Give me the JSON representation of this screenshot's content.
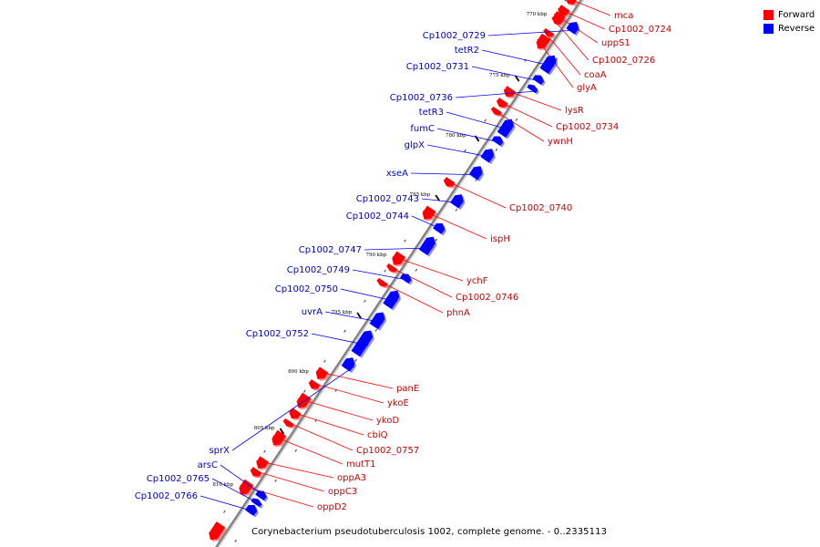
{
  "legend": {
    "items": [
      {
        "label": "Forward",
        "color": "#ff0000"
      },
      {
        "label": "Reverse",
        "color": "#0000ff"
      }
    ]
  },
  "caption": "Corynebacterium pseudotuberculosis 1002, complete genome. - 0..2335113",
  "colors": {
    "forward": "#ff0000",
    "reverse": "#0000ff",
    "backbone": "#7f7f7f"
  },
  "chart_data": {
    "type": "genome-map",
    "scale_labels": [
      "770 kbp",
      "775 kbp",
      "780 kbp",
      "785 kbp",
      "790 kbp",
      "795 kbp",
      "800 kbp",
      "805 kbp",
      "810 kbp"
    ],
    "forward_genes": [
      "mca",
      "Cp1002_0724",
      "uppS1",
      "Cp1002_0726",
      "coaA",
      "glyA",
      "lysR",
      "Cp1002_0734",
      "ywnH",
      "Cp1002_0740",
      "ispH",
      "ychF",
      "Cp1002_0746",
      "phnA",
      "panE",
      "ykoE",
      "ykoD",
      "cbiQ",
      "Cp1002_0757",
      "mutT1",
      "oppA3",
      "oppC3",
      "oppD2"
    ],
    "reverse_genes": [
      "Cp1002_0729",
      "tetR2",
      "Cp1002_0731",
      "Cp1002_0736",
      "tetR3",
      "fumC",
      "glpX",
      "xseA",
      "Cp1002_0743",
      "Cp1002_0744",
      "Cp1002_0747",
      "Cp1002_0749",
      "Cp1002_0750",
      "uvrA",
      "Cp1002_0752",
      "sprX",
      "arsC",
      "Cp1002_0765",
      "Cp1002_0766"
    ]
  }
}
